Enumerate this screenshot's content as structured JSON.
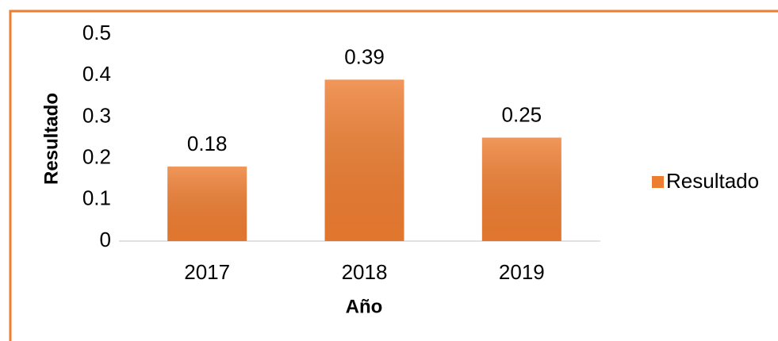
{
  "chart_data": {
    "type": "bar",
    "categories": [
      "2017",
      "2018",
      "2019"
    ],
    "series": [
      {
        "name": "Resultado",
        "color": "#ed7d31",
        "values": [
          0.18,
          0.39,
          0.25
        ]
      }
    ],
    "xlabel": "Año",
    "ylabel": "Resultado",
    "ylim": [
      0,
      0.5
    ],
    "yticks": [
      0,
      0.1,
      0.2,
      0.3,
      0.4,
      0.5
    ],
    "grid": false,
    "legend": "right"
  }
}
